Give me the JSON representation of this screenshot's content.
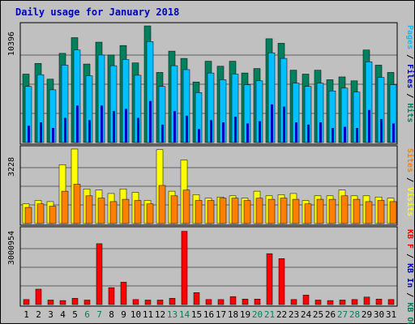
{
  "colors": {
    "background": "#c0c0c0",
    "hits": "#00805c",
    "files": "#00c0ff",
    "pages": "#00e0ff",
    "visits": "#ffff00",
    "sites": "#ff8000",
    "kbytes": "#ff0000",
    "kb_in": "#0000c0",
    "kb_out": "#00805c",
    "title": "#0000c0",
    "weekend_label": "#00805c"
  },
  "chart_data": {
    "type": "bar",
    "title": "Daily usage for January 2018",
    "categories": [
      "1",
      "2",
      "3",
      "4",
      "5",
      "6",
      "7",
      "8",
      "9",
      "10",
      "11",
      "12",
      "13",
      "14",
      "15",
      "16",
      "17",
      "18",
      "19",
      "20",
      "21",
      "22",
      "23",
      "24",
      "25",
      "26",
      "27",
      "28",
      "29",
      "30",
      "31"
    ],
    "weekend_days": [
      "6",
      "7",
      "13",
      "14",
      "20",
      "21",
      "27",
      "28"
    ],
    "panels": [
      {
        "id": "hits",
        "max_label": "10396",
        "ylim": [
          0,
          10396
        ],
        "legend": [
          {
            "text": "Pages",
            "color": "#00c0ff"
          },
          {
            "text": " / ",
            "color": "#000000"
          },
          {
            "text": "Files",
            "color": "#0000c0"
          },
          {
            "text": " / ",
            "color": "#000000"
          },
          {
            "text": "Hits",
            "color": "#00805c"
          }
        ],
        "series": [
          {
            "name": "Hits",
            "values": [
              6100,
              7050,
              5650,
              7950,
              9350,
              7000,
              8950,
              7800,
              8650,
              7100,
              10396,
              6250,
              8150,
              7500,
              5400,
              7250,
              6800,
              7250,
              6200,
              6600,
              9250,
              8850,
              6450,
              6100,
              6450,
              5600,
              5850,
              5500,
              8250,
              6900,
              6250
            ]
          },
          {
            "name": "Files",
            "values": [
              5000,
              6050,
              4700,
              6900,
              8250,
              5950,
              7800,
              6850,
              7400,
              6000,
              9000,
              5000,
              6850,
              6500,
              4450,
              6200,
              5600,
              6100,
              5150,
              5500,
              8000,
              7500,
              5300,
              5000,
              5300,
              4600,
              4850,
              4500,
              7200,
              5800,
              5150
            ]
          },
          {
            "name": "Pages",
            "values": [
              1500,
              1800,
              1300,
              2200,
              3300,
              2000,
              3300,
              2800,
              3000,
              2200,
              3700,
              1600,
              2800,
              2400,
              1200,
              2000,
              1800,
              2300,
              1700,
              1900,
              3400,
              3200,
              1800,
              1600,
              1800,
              1300,
              1400,
              1300,
              2900,
              2100,
              1700
            ]
          }
        ]
      },
      {
        "id": "visits",
        "max_label": "3228",
        "ylim": [
          0,
          3228
        ],
        "legend": [
          {
            "text": "Sites",
            "color": "#ff8000"
          },
          {
            "text": " / ",
            "color": "#000000"
          },
          {
            "text": "Visits",
            "color": "#ffff00"
          }
        ],
        "series": [
          {
            "name": "Visits",
            "values": [
              850,
              1000,
              950,
              2550,
              3228,
              1500,
              1450,
              1300,
              1500,
              1350,
              1000,
              3200,
              1400,
              2750,
              1250,
              1100,
              1150,
              1200,
              1100,
              1400,
              1200,
              1250,
              1300,
              1000,
              1200,
              1200,
              1450,
              1200,
              1200,
              1150,
              1100
            ]
          },
          {
            "name": "Sites",
            "values": [
              700,
              850,
              750,
              1400,
              1700,
              1200,
              1100,
              950,
              1050,
              1000,
              850,
              1650,
              1200,
              1450,
              1000,
              1000,
              1100,
              1100,
              1000,
              1100,
              1050,
              1100,
              1050,
              850,
              1050,
              1050,
              1200,
              1050,
              950,
              1000,
              950
            ]
          }
        ]
      },
      {
        "id": "kbytes",
        "max_label": "3000954",
        "ylim": [
          0,
          3000954
        ],
        "legend": [
          {
            "text": "KB F",
            "color": "#ff0000"
          },
          {
            "text": " / ",
            "color": "#000000"
          },
          {
            "text": "KB In",
            "color": "#0000c0"
          },
          {
            "text": " / ",
            "color": "#000000"
          },
          {
            "text": "KB Out",
            "color": "#00805c"
          }
        ],
        "series": [
          {
            "name": "KBytes",
            "values": [
              200000,
              620000,
              180000,
              160000,
              250000,
              180000,
              2450000,
              680000,
              900000,
              200000,
              180000,
              180000,
              250000,
              2950000,
              480000,
              200000,
              200000,
              320000,
              220000,
              220000,
              2050000,
              1850000,
              200000,
              380000,
              180000,
              160000,
              180000,
              200000,
              300000,
              220000,
              200000
            ]
          }
        ]
      }
    ]
  }
}
